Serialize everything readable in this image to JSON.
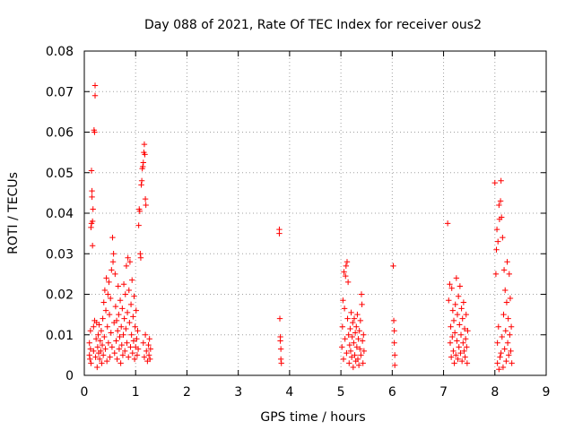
{
  "chart_data": {
    "type": "scatter",
    "title": "Day 088 of 2021, Rate Of TEC Index for receiver ous2",
    "xlabel": "GPS time / hours",
    "ylabel": "ROTI / TECUs",
    "xlim": [
      0,
      9
    ],
    "ylim": [
      0,
      0.08
    ],
    "x_ticks": [
      "0",
      "1",
      "2",
      "3",
      "4",
      "5",
      "6",
      "7",
      "8",
      "9"
    ],
    "y_ticks": [
      "0",
      "0.01",
      "0.02",
      "0.03",
      "0.04",
      "0.05",
      "0.06",
      "0.07",
      "0.08"
    ],
    "grid": true,
    "grid_style": "dotted",
    "marker": "+",
    "color": "#ff0000",
    "series": [
      {
        "points": [
          [
            0.1,
            0.005
          ],
          [
            0.1,
            0.008
          ],
          [
            0.11,
            0.004
          ],
          [
            0.12,
            0.011
          ],
          [
            0.12,
            0.0065
          ],
          [
            0.13,
            0.003
          ],
          [
            0.13,
            0.0365
          ],
          [
            0.14,
            0.0375
          ],
          [
            0.14,
            0.0505
          ],
          [
            0.15,
            0.0455
          ],
          [
            0.15,
            0.044
          ],
          [
            0.16,
            0.038
          ],
          [
            0.16,
            0.032
          ],
          [
            0.17,
            0.041
          ],
          [
            0.18,
            0.012
          ],
          [
            0.18,
            0.006
          ],
          [
            0.19,
            0.0605
          ],
          [
            0.2,
            0.06
          ],
          [
            0.21,
            0.0715
          ],
          [
            0.21,
            0.069
          ],
          [
            0.2,
            0.0135
          ],
          [
            0.22,
            0.0045
          ],
          [
            0.23,
            0.009
          ],
          [
            0.24,
            0.013
          ],
          [
            0.25,
            0.002
          ],
          [
            0.26,
            0.007
          ],
          [
            0.27,
            0.01
          ],
          [
            0.28,
            0.0055
          ],
          [
            0.29,
            0.0125
          ],
          [
            0.3,
            0.004
          ],
          [
            0.31,
            0.0085
          ],
          [
            0.32,
            0.006
          ],
          [
            0.33,
            0.011
          ],
          [
            0.34,
            0.003
          ],
          [
            0.35,
            0.0075
          ],
          [
            0.36,
            0.014
          ],
          [
            0.37,
            0.005
          ],
          [
            0.38,
            0.018
          ],
          [
            0.39,
            0.0095
          ],
          [
            0.4,
            0.021
          ],
          [
            0.41,
            0.0065
          ],
          [
            0.42,
            0.016
          ],
          [
            0.43,
            0.024
          ],
          [
            0.44,
            0.0035
          ],
          [
            0.45,
            0.012
          ],
          [
            0.46,
            0.02
          ],
          [
            0.47,
            0.008
          ],
          [
            0.48,
            0.023
          ],
          [
            0.49,
            0.015
          ],
          [
            0.5,
            0.0045
          ],
          [
            0.51,
            0.019
          ],
          [
            0.52,
            0.0105
          ],
          [
            0.53,
            0.026
          ],
          [
            0.54,
            0.007
          ],
          [
            0.55,
            0.034
          ],
          [
            0.56,
            0.028
          ],
          [
            0.57,
            0.03
          ],
          [
            0.58,
            0.013
          ],
          [
            0.59,
            0.0055
          ],
          [
            0.6,
            0.025
          ],
          [
            0.61,
            0.017
          ],
          [
            0.62,
            0.0085
          ],
          [
            0.63,
            0.0135
          ],
          [
            0.64,
            0.004
          ],
          [
            0.65,
            0.011
          ],
          [
            0.66,
            0.022
          ],
          [
            0.67,
            0.015
          ],
          [
            0.68,
            0.0065
          ],
          [
            0.69,
            0.0095
          ],
          [
            0.7,
            0.0185
          ],
          [
            0.71,
            0.003
          ],
          [
            0.72,
            0.012
          ],
          [
            0.73,
            0.0075
          ],
          [
            0.74,
            0.0165
          ],
          [
            0.75,
            0.005
          ],
          [
            0.76,
            0.01
          ],
          [
            0.77,
            0.0225
          ],
          [
            0.78,
            0.014
          ],
          [
            0.79,
            0.006
          ],
          [
            0.8,
            0.02
          ],
          [
            0.81,
            0.0115
          ],
          [
            0.82,
            0.027
          ],
          [
            0.83,
            0.008
          ],
          [
            0.84,
            0.0155
          ],
          [
            0.85,
            0.029
          ],
          [
            0.86,
            0.0045
          ],
          [
            0.87,
            0.021
          ],
          [
            0.88,
            0.013
          ],
          [
            0.89,
            0.028
          ],
          [
            0.9,
            0.007
          ],
          [
            0.91,
            0.0175
          ],
          [
            0.92,
            0.01
          ],
          [
            0.93,
            0.0235
          ],
          [
            0.94,
            0.0055
          ],
          [
            0.95,
            0.0145
          ],
          [
            0.96,
            0.0085
          ],
          [
            0.97,
            0.0195
          ],
          [
            0.98,
            0.004
          ],
          [
            0.99,
            0.012
          ],
          [
            1.0,
            0.007
          ],
          [
            1.01,
            0.016
          ],
          [
            1.02,
            0.009
          ],
          [
            1.03,
            0.005
          ],
          [
            1.04,
            0.011
          ],
          [
            1.05,
            0.0065
          ],
          [
            1.06,
            0.037
          ],
          [
            1.07,
            0.041
          ],
          [
            1.08,
            0.0405
          ],
          [
            1.09,
            0.03
          ],
          [
            1.1,
            0.029
          ],
          [
            1.11,
            0.047
          ],
          [
            1.12,
            0.048
          ],
          [
            1.13,
            0.051
          ],
          [
            1.14,
            0.0515
          ],
          [
            1.15,
            0.0525
          ],
          [
            1.16,
            0.055
          ],
          [
            1.17,
            0.057
          ],
          [
            1.18,
            0.0545
          ],
          [
            1.19,
            0.0435
          ],
          [
            1.2,
            0.042
          ],
          [
            1.15,
            0.008
          ],
          [
            1.17,
            0.0045
          ],
          [
            1.19,
            0.01
          ],
          [
            1.21,
            0.006
          ],
          [
            1.23,
            0.0035
          ],
          [
            1.25,
            0.0075
          ],
          [
            1.26,
            0.005
          ],
          [
            1.27,
            0.009
          ],
          [
            1.28,
            0.004
          ],
          [
            1.29,
            0.0065
          ],
          [
            3.8,
            0.036
          ],
          [
            3.8,
            0.035
          ],
          [
            3.81,
            0.014
          ],
          [
            3.82,
            0.0095
          ],
          [
            3.82,
            0.0085
          ],
          [
            3.83,
            0.0065
          ],
          [
            3.83,
            0.004
          ],
          [
            3.84,
            0.003
          ],
          [
            5.02,
            0.007
          ],
          [
            5.03,
            0.012
          ],
          [
            5.04,
            0.0185
          ],
          [
            5.05,
            0.004
          ],
          [
            5.06,
            0.0255
          ],
          [
            5.07,
            0.0165
          ],
          [
            5.08,
            0.009
          ],
          [
            5.09,
            0.0245
          ],
          [
            5.1,
            0.027
          ],
          [
            5.11,
            0.0055
          ],
          [
            5.12,
            0.028
          ],
          [
            5.13,
            0.014
          ],
          [
            5.14,
            0.023
          ],
          [
            5.15,
            0.01
          ],
          [
            5.16,
            0.003
          ],
          [
            5.17,
            0.0075
          ],
          [
            5.18,
            0.0115
          ],
          [
            5.19,
            0.006
          ],
          [
            5.2,
            0.0155
          ],
          [
            5.21,
            0.0045
          ],
          [
            5.22,
            0.0095
          ],
          [
            5.23,
            0.013
          ],
          [
            5.24,
            0.002
          ],
          [
            5.25,
            0.008
          ],
          [
            5.26,
            0.014
          ],
          [
            5.27,
            0.005
          ],
          [
            5.28,
            0.0105
          ],
          [
            5.29,
            0.0035
          ],
          [
            5.3,
            0.012
          ],
          [
            5.31,
            0.007
          ],
          [
            5.32,
            0.015
          ],
          [
            5.33,
            0.004
          ],
          [
            5.34,
            0.009
          ],
          [
            5.35,
            0.0025
          ],
          [
            5.36,
            0.011
          ],
          [
            5.37,
            0.0065
          ],
          [
            5.38,
            0.0135
          ],
          [
            5.39,
            0.005
          ],
          [
            5.4,
            0.02
          ],
          [
            5.41,
            0.0175
          ],
          [
            5.42,
            0.0085
          ],
          [
            5.43,
            0.003
          ],
          [
            5.44,
            0.01
          ],
          [
            5.45,
            0.006
          ],
          [
            6.02,
            0.027
          ],
          [
            6.03,
            0.0135
          ],
          [
            6.04,
            0.011
          ],
          [
            6.04,
            0.008
          ],
          [
            6.05,
            0.005
          ],
          [
            6.05,
            0.0025
          ],
          [
            7.08,
            0.0375
          ],
          [
            7.1,
            0.0185
          ],
          [
            7.12,
            0.0225
          ],
          [
            7.13,
            0.008
          ],
          [
            7.14,
            0.012
          ],
          [
            7.15,
            0.0045
          ],
          [
            7.16,
            0.0215
          ],
          [
            7.17,
            0.0095
          ],
          [
            7.18,
            0.016
          ],
          [
            7.19,
            0.006
          ],
          [
            7.2,
            0.0135
          ],
          [
            7.21,
            0.003
          ],
          [
            7.22,
            0.0105
          ],
          [
            7.23,
            0.0175
          ],
          [
            7.24,
            0.005
          ],
          [
            7.25,
            0.024
          ],
          [
            7.26,
            0.0085
          ],
          [
            7.27,
            0.015
          ],
          [
            7.28,
            0.004
          ],
          [
            7.29,
            0.0195
          ],
          [
            7.3,
            0.007
          ],
          [
            7.31,
            0.0125
          ],
          [
            7.32,
            0.022
          ],
          [
            7.33,
            0.0055
          ],
          [
            7.34,
            0.01
          ],
          [
            7.35,
            0.0165
          ],
          [
            7.36,
            0.0035
          ],
          [
            7.37,
            0.014
          ],
          [
            7.38,
            0.008
          ],
          [
            7.39,
            0.018
          ],
          [
            7.4,
            0.006
          ],
          [
            7.41,
            0.0115
          ],
          [
            7.42,
            0.0045
          ],
          [
            7.43,
            0.009
          ],
          [
            7.44,
            0.015
          ],
          [
            7.45,
            0.007
          ],
          [
            7.46,
            0.003
          ],
          [
            7.47,
            0.011
          ],
          [
            8.0,
            0.0475
          ],
          [
            8.02,
            0.025
          ],
          [
            8.03,
            0.031
          ],
          [
            8.04,
            0.036
          ],
          [
            8.05,
            0.008
          ],
          [
            8.06,
            0.033
          ],
          [
            8.07,
            0.012
          ],
          [
            8.08,
            0.042
          ],
          [
            8.09,
            0.0385
          ],
          [
            8.1,
            0.0045
          ],
          [
            8.11,
            0.043
          ],
          [
            8.12,
            0.048
          ],
          [
            8.13,
            0.039
          ],
          [
            8.14,
            0.0095
          ],
          [
            8.15,
            0.034
          ],
          [
            8.16,
            0.002
          ],
          [
            8.17,
            0.015
          ],
          [
            8.18,
            0.026
          ],
          [
            8.19,
            0.0065
          ],
          [
            8.2,
            0.021
          ],
          [
            8.21,
            0.011
          ],
          [
            8.22,
            0.0035
          ],
          [
            8.23,
            0.018
          ],
          [
            8.24,
            0.028
          ],
          [
            8.25,
            0.008
          ],
          [
            8.26,
            0.014
          ],
          [
            8.27,
            0.005
          ],
          [
            8.28,
            0.025
          ],
          [
            8.29,
            0.01
          ],
          [
            8.3,
            0.019
          ],
          [
            8.31,
            0.006
          ],
          [
            8.32,
            0.012
          ],
          [
            8.33,
            0.003
          ],
          [
            8.05,
            0.003
          ],
          [
            8.08,
            0.0015
          ],
          [
            8.12,
            0.0055
          ]
        ]
      }
    ]
  }
}
